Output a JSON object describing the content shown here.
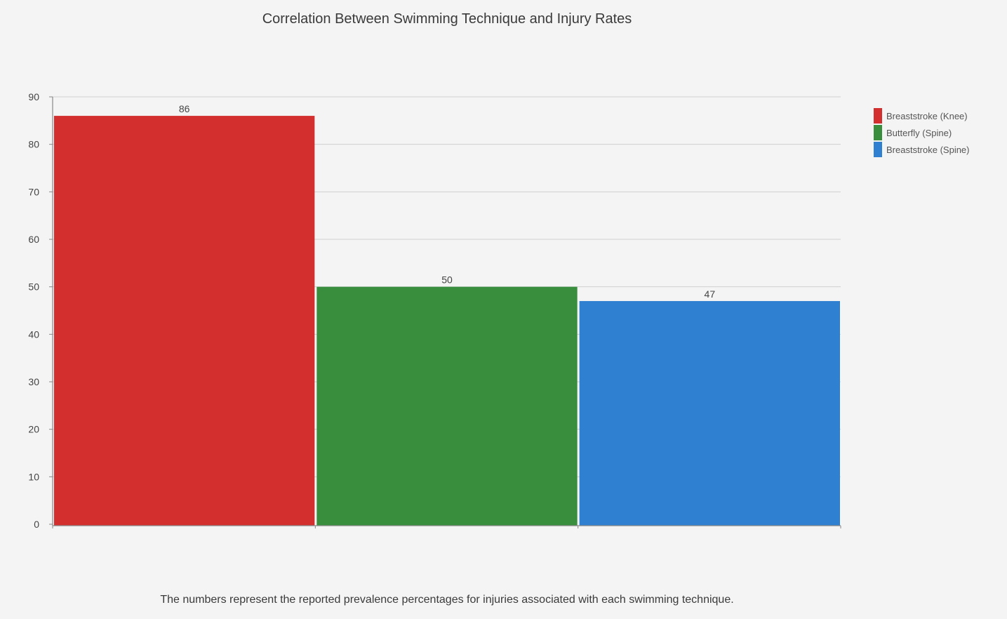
{
  "chart_data": {
    "type": "bar",
    "title": "Correlation Between Swimming Technique and Injury Rates",
    "caption": "The numbers represent the reported prevalence percentages for injuries associated with each swimming technique.",
    "categories": [
      "Breaststroke (Knee)",
      "Butterfly (Spine)",
      "Breaststroke (Spine)"
    ],
    "values": [
      86,
      50,
      47
    ],
    "data_labels": [
      "86",
      "50",
      "47"
    ],
    "colors": [
      "#d32f2f",
      "#388e3c",
      "#2f80d1"
    ],
    "ylim": [
      0,
      90
    ],
    "yticks": [
      "0",
      "10",
      "20",
      "30",
      "40",
      "50",
      "60",
      "70",
      "80",
      "90"
    ],
    "grid": true,
    "legend_position": "right"
  }
}
